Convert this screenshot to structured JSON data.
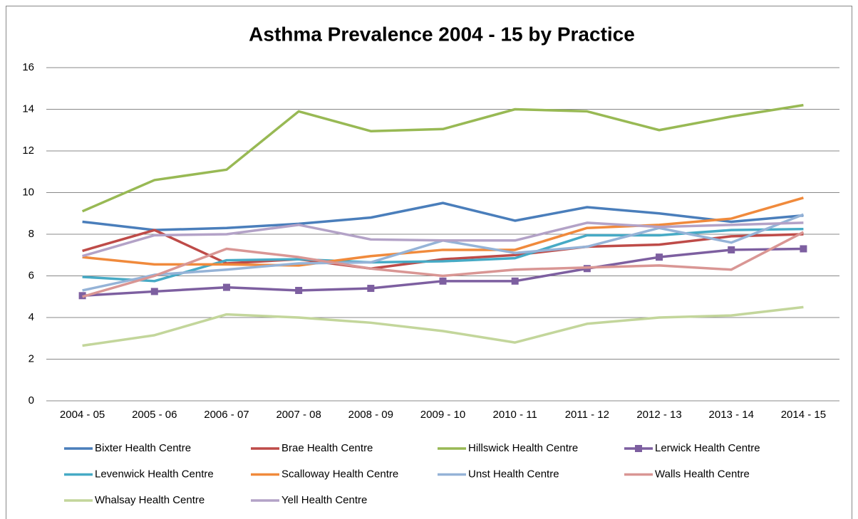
{
  "chart_data": {
    "type": "line",
    "title": "Asthma Prevalence 2004 - 15 by Practice",
    "categories": [
      "2004 - 05",
      "2005 - 06",
      "2006 - 07",
      "2007 - 08",
      "2008 - 09",
      "2009 - 10",
      "2010 - 11",
      "2011 - 12",
      "2012 - 13",
      "2013 - 14",
      "2014 - 15"
    ],
    "series": [
      {
        "name": "Bixter Health Centre",
        "color": "#4a7ebb",
        "values": [
          8.6,
          8.2,
          8.3,
          8.5,
          8.8,
          9.5,
          8.65,
          9.3,
          9.0,
          8.6,
          8.9
        ]
      },
      {
        "name": "Brae Health Centre",
        "color": "#be4b48",
        "values": [
          7.2,
          8.2,
          6.6,
          6.8,
          6.35,
          6.8,
          7.0,
          7.4,
          7.5,
          7.9,
          8.0
        ]
      },
      {
        "name": "Hillswick Health Centre",
        "color": "#98b954",
        "values": [
          9.1,
          10.6,
          11.1,
          13.9,
          12.95,
          13.05,
          14.0,
          13.9,
          13.0,
          13.65,
          14.2
        ]
      },
      {
        "name": "Lerwick Health Centre",
        "color": "#7d5fa0",
        "marker": "square",
        "values": [
          5.05,
          5.25,
          5.45,
          5.3,
          5.4,
          5.75,
          5.75,
          6.35,
          6.9,
          7.25,
          7.3
        ]
      },
      {
        "name": "Levenwick Health Centre",
        "color": "#46aac5",
        "values": [
          5.95,
          5.75,
          6.75,
          6.8,
          6.65,
          6.7,
          6.85,
          7.95,
          7.95,
          8.2,
          8.25
        ]
      },
      {
        "name": "Scalloway Health Centre",
        "color": "#f08a3c",
        "values": [
          6.9,
          6.55,
          6.55,
          6.5,
          6.95,
          7.25,
          7.25,
          8.3,
          8.45,
          8.75,
          9.75
        ]
      },
      {
        "name": "Unst Health Centre",
        "color": "#95b3d7",
        "values": [
          5.3,
          6.05,
          6.3,
          6.6,
          6.65,
          7.7,
          7.1,
          7.4,
          8.3,
          7.6,
          8.95
        ]
      },
      {
        "name": "Walls Health Centre",
        "color": "#d99694",
        "values": [
          5.0,
          6.0,
          7.3,
          6.9,
          6.35,
          6.0,
          6.3,
          6.4,
          6.5,
          6.3,
          8.1
        ]
      },
      {
        "name": "Whalsay Health Centre",
        "color": "#c3d69b",
        "values": [
          2.65,
          3.15,
          4.15,
          4.0,
          3.75,
          3.35,
          2.8,
          3.7,
          4.0,
          4.1,
          4.5
        ]
      },
      {
        "name": "Yell Health Centre",
        "color": "#b3a2c7",
        "values": [
          6.95,
          7.95,
          8.0,
          8.45,
          7.75,
          7.7,
          7.7,
          8.55,
          8.35,
          8.45,
          8.55
        ]
      }
    ],
    "ylim": [
      0,
      16
    ],
    "yticks": [
      0,
      2,
      4,
      6,
      8,
      10,
      12,
      14,
      16
    ],
    "grid": true,
    "legend": "bottom"
  }
}
